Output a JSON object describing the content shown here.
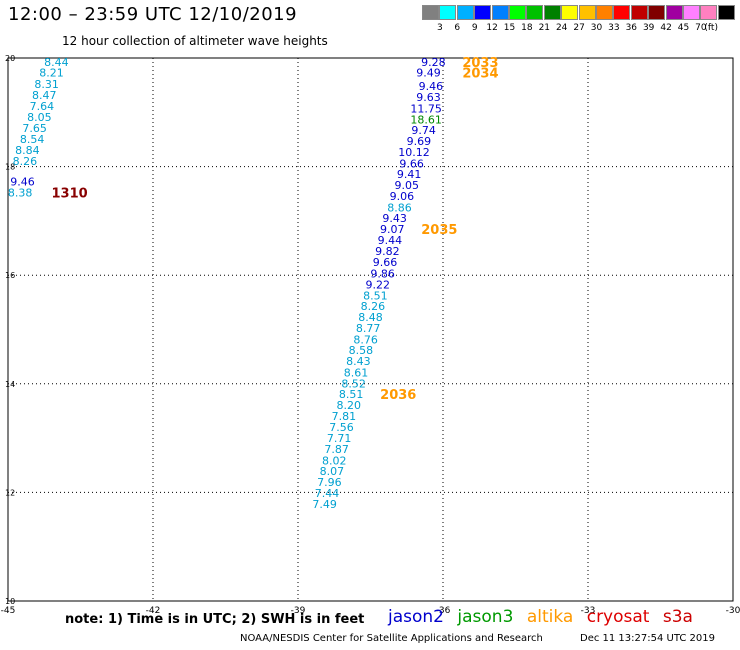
{
  "header": {
    "title": "12:00 – 23:59 UTC 12/10/2019",
    "subtitle": "12 hour collection of altimeter wave heights"
  },
  "colorbar": {
    "colors": [
      "#808080",
      "#00ffff",
      "#00b0ff",
      "#0000ff",
      "#0080ff",
      "#00ff00",
      "#00c000",
      "#008000",
      "#ffff00",
      "#ffc000",
      "#ff8000",
      "#ff0000",
      "#c00000",
      "#800000",
      "#a000a0",
      "#ff80ff",
      "#ff80c0",
      "#000000"
    ],
    "labels": [
      "3",
      "6",
      "9",
      "12",
      "15",
      "18",
      "21",
      "24",
      "27",
      "30",
      "33",
      "36",
      "39",
      "42",
      "45",
      "70"
    ],
    "unit": "(ft)"
  },
  "chart_data": {
    "type": "scatter",
    "xlim": [
      -45,
      -30
    ],
    "ylim": [
      10,
      20
    ],
    "xticks": [
      "-45",
      "-42",
      "-39",
      "-36",
      "-33",
      "-30"
    ],
    "yticks": [
      "10",
      "12",
      "14",
      "16",
      "18",
      "20"
    ],
    "grid": true,
    "series": [
      {
        "name": "jason2",
        "color": "#0000cc",
        "points": [
          {
            "x": -36.2,
            "y": 19.93,
            "v": "9.28"
          },
          {
            "x": -36.3,
            "y": 19.73,
            "v": "9.49"
          },
          {
            "x": -36.25,
            "y": 19.48,
            "v": "9.46"
          },
          {
            "x": -36.3,
            "y": 19.28,
            "v": "9.63"
          },
          {
            "x": -36.35,
            "y": 19.07,
            "v": "11.75"
          },
          {
            "x": -36.4,
            "y": 18.67,
            "v": "9.74"
          },
          {
            "x": -36.5,
            "y": 18.47,
            "v": "9.69"
          },
          {
            "x": -36.6,
            "y": 18.27,
            "v": "10.12"
          },
          {
            "x": -36.65,
            "y": 18.06,
            "v": "9.66"
          },
          {
            "x": -36.7,
            "y": 17.86,
            "v": "9.41"
          },
          {
            "x": -36.75,
            "y": 17.66,
            "v": "9.05"
          },
          {
            "x": -36.85,
            "y": 17.46,
            "v": "9.06"
          },
          {
            "x": -37.0,
            "y": 17.05,
            "v": "9.43"
          },
          {
            "x": -37.05,
            "y": 16.85,
            "v": "9.07"
          },
          {
            "x": -37.1,
            "y": 16.65,
            "v": "9.44"
          },
          {
            "x": -37.15,
            "y": 16.45,
            "v": "9.82"
          },
          {
            "x": -37.2,
            "y": 16.24,
            "v": "9.66"
          },
          {
            "x": -37.25,
            "y": 16.03,
            "v": "9.86"
          },
          {
            "x": -37.35,
            "y": 15.83,
            "v": "9.22"
          },
          {
            "x": -44.7,
            "y": 17.73,
            "v": "9.46"
          }
        ]
      },
      {
        "name": "jason3",
        "color": "#008800",
        "points": [
          {
            "x": -36.35,
            "y": 18.87,
            "v": "18.61"
          }
        ]
      },
      {
        "name": "cyan",
        "color": "#00a0d0",
        "points": [
          {
            "x": -36.9,
            "y": 17.25,
            "v": "8.86"
          },
          {
            "x": -37.4,
            "y": 15.63,
            "v": "8.51"
          },
          {
            "x": -37.45,
            "y": 15.43,
            "v": "8.26"
          },
          {
            "x": -37.5,
            "y": 15.23,
            "v": "8.48"
          },
          {
            "x": -37.55,
            "y": 15.03,
            "v": "8.77"
          },
          {
            "x": -37.6,
            "y": 14.82,
            "v": "8.76"
          },
          {
            "x": -37.7,
            "y": 14.62,
            "v": "8.58"
          },
          {
            "x": -37.75,
            "y": 14.42,
            "v": "8.43"
          },
          {
            "x": -37.8,
            "y": 14.21,
            "v": "8.61"
          },
          {
            "x": -37.85,
            "y": 14.01,
            "v": "8.52"
          },
          {
            "x": -37.9,
            "y": 13.81,
            "v": "8.51"
          },
          {
            "x": -37.95,
            "y": 13.61,
            "v": "8.20"
          },
          {
            "x": -38.05,
            "y": 13.41,
            "v": "7.81"
          },
          {
            "x": -38.1,
            "y": 13.2,
            "v": "7.56"
          },
          {
            "x": -38.15,
            "y": 13.0,
            "v": "7.71"
          },
          {
            "x": -38.2,
            "y": 12.8,
            "v": "7.87"
          },
          {
            "x": -38.25,
            "y": 12.59,
            "v": "8.02"
          },
          {
            "x": -38.3,
            "y": 12.39,
            "v": "8.07"
          },
          {
            "x": -38.35,
            "y": 12.19,
            "v": "7.96"
          },
          {
            "x": -38.4,
            "y": 11.99,
            "v": "7.44"
          },
          {
            "x": -38.45,
            "y": 11.79,
            "v": "7.49"
          },
          {
            "x": -44.0,
            "y": 19.93,
            "v": "8.44"
          },
          {
            "x": -44.1,
            "y": 19.73,
            "v": "8.21"
          },
          {
            "x": -44.2,
            "y": 19.52,
            "v": "8.31"
          },
          {
            "x": -44.25,
            "y": 19.32,
            "v": "8.47"
          },
          {
            "x": -44.3,
            "y": 19.12,
            "v": "7.64"
          },
          {
            "x": -44.35,
            "y": 18.91,
            "v": "8.05"
          },
          {
            "x": -44.45,
            "y": 18.71,
            "v": "7.65"
          },
          {
            "x": -44.5,
            "y": 18.51,
            "v": "8.54"
          },
          {
            "x": -44.6,
            "y": 18.31,
            "v": "8.84"
          },
          {
            "x": -44.65,
            "y": 18.1,
            "v": "8.26"
          },
          {
            "x": -44.75,
            "y": 17.52,
            "v": "8.38"
          }
        ]
      }
    ],
    "annotations": [
      {
        "text": "2033",
        "x": -35.6,
        "y": 19.93,
        "color": "#ff9900"
      },
      {
        "text": "2034",
        "x": -35.6,
        "y": 19.73,
        "color": "#ff9900"
      },
      {
        "text": "2035",
        "x": -36.45,
        "y": 16.85,
        "color": "#ff9900"
      },
      {
        "text": "2036",
        "x": -37.3,
        "y": 13.81,
        "color": "#ff9900"
      },
      {
        "text": "1310",
        "x": -44.1,
        "y": 17.52,
        "color": "#880000"
      }
    ]
  },
  "note": "note: 1) Time is in UTC; 2) SWH is in feet",
  "legend": [
    {
      "label": "jason2",
      "color": "#0000cc"
    },
    {
      "label": "jason3",
      "color": "#009900"
    },
    {
      "label": "altika",
      "color": "#ff9900"
    },
    {
      "label": "cryosat",
      "color": "#dd0000"
    },
    {
      "label": "s3a",
      "color": "#cc0000"
    }
  ],
  "footer": {
    "left": "NOAA/NESDIS Center for Satellite Applications and Research",
    "right": "Dec 11 13:27:54 UTC 2019"
  }
}
